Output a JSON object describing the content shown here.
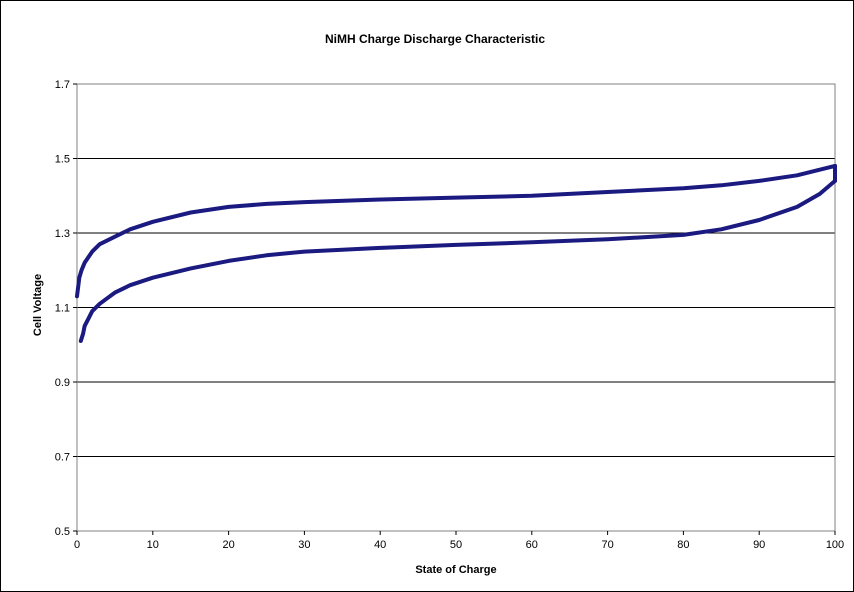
{
  "chart_data": {
    "type": "line",
    "title": "NiMH Charge Discharge Characteristic",
    "xlabel": "State of Charge",
    "ylabel": "Cell Voltage",
    "xlim": [
      0,
      100
    ],
    "ylim": [
      0.5,
      1.7
    ],
    "x_ticks": [
      0,
      10,
      20,
      30,
      40,
      50,
      60,
      70,
      80,
      90,
      100
    ],
    "y_ticks": [
      0.5,
      0.7,
      0.9,
      1.1,
      1.3,
      1.5,
      1.7
    ],
    "y_tick_labels": [
      "0.5",
      "0.7",
      "0.9",
      "1.1",
      "1.3",
      "1.5",
      "1.7"
    ],
    "grid": "horizontal",
    "legend": "none",
    "line_color": "#1a1a80",
    "series": [
      {
        "x": [
          0,
          0.3,
          0.6,
          1,
          2,
          3,
          5,
          7,
          10,
          15,
          20,
          25,
          30,
          40,
          50,
          60,
          70,
          80,
          85,
          90,
          95,
          98,
          100
        ],
        "y": [
          1.13,
          1.18,
          1.2,
          1.22,
          1.25,
          1.27,
          1.29,
          1.31,
          1.33,
          1.355,
          1.37,
          1.378,
          1.383,
          1.39,
          1.395,
          1.4,
          1.41,
          1.42,
          1.428,
          1.44,
          1.455,
          1.47,
          1.48
        ]
      },
      {
        "x": [
          0.5,
          0.8,
          1,
          1.5,
          2,
          3,
          4,
          5,
          7,
          10,
          15,
          20,
          25,
          30,
          40,
          50,
          60,
          70,
          80,
          85,
          90,
          95,
          98,
          100
        ],
        "y": [
          1.01,
          1.03,
          1.05,
          1.07,
          1.09,
          1.11,
          1.125,
          1.14,
          1.16,
          1.18,
          1.205,
          1.225,
          1.24,
          1.25,
          1.26,
          1.268,
          1.275,
          1.283,
          1.295,
          1.31,
          1.335,
          1.37,
          1.405,
          1.44
        ]
      }
    ]
  }
}
